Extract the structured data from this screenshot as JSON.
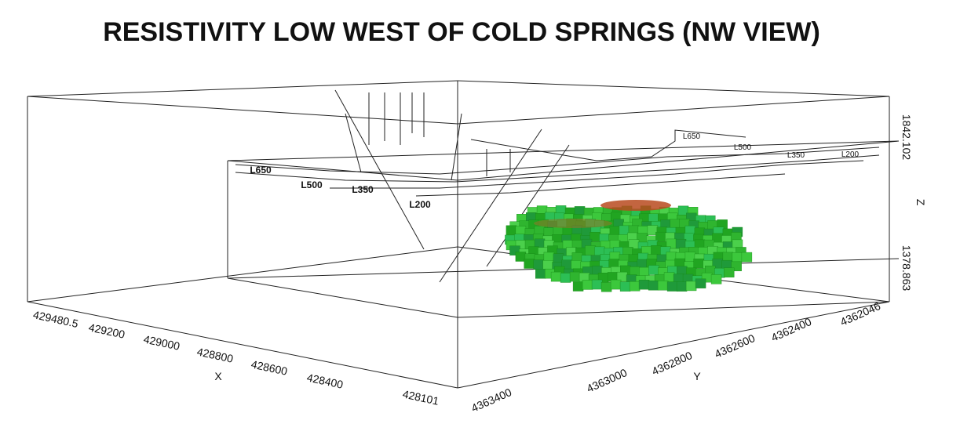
{
  "title": "RESISTIVITY LOW WEST OF COLD SPRINGS (NW VIEW)",
  "axes": {
    "x": {
      "label": "X",
      "ticks": [
        "429480.5",
        "429200",
        "429000",
        "428800",
        "428600",
        "428400",
        "428101"
      ]
    },
    "y": {
      "label": "Y",
      "ticks": [
        "4363400",
        "4363000",
        "4362800",
        "4362600",
        "4362400",
        "4362046"
      ]
    },
    "z": {
      "label": "Z",
      "ticks": [
        "1378.863",
        "1842.102"
      ]
    }
  },
  "survey_lines_front": [
    "L650",
    "L500",
    "L350",
    "L200"
  ],
  "survey_lines_back": [
    "L650",
    "L500",
    "L350",
    "L200"
  ]
}
